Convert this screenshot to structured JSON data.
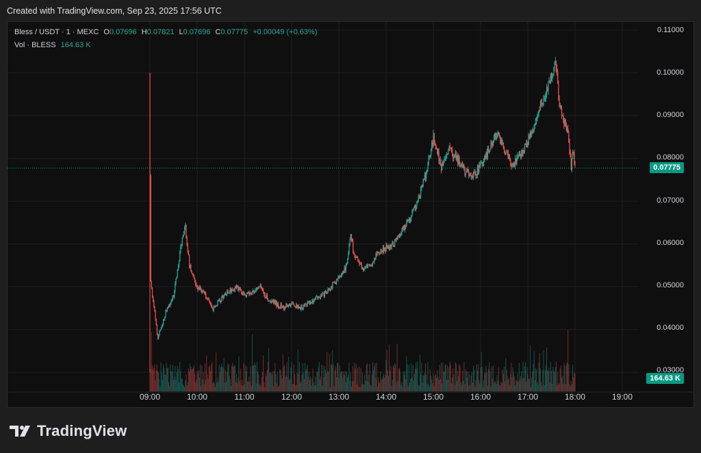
{
  "header": {
    "created_text": "Created with TradingView.com, Sep 23, 2025 17:56 UTC"
  },
  "legend": {
    "symbol": "Bless / USDT · 1 · MEXC",
    "o_label": "O",
    "o_value": "0.07696",
    "h_label": "H",
    "h_value": "0.07821",
    "l_label": "L",
    "l_value": "0.07696",
    "c_label": "C",
    "c_value": "0.07775",
    "change": "+0.00049 (+0.63%)",
    "vol_label": "Vol · BLESS",
    "vol_value": "164.63 K"
  },
  "brand": {
    "name": "TradingView",
    "logo_icon": "tradingview-logo-icon"
  },
  "colors": {
    "up": "#26a69a",
    "down": "#ef5350",
    "last_price": "#089981"
  },
  "chart_data": {
    "type": "candlestick",
    "symbol": "Bless / USDT",
    "interval": "1",
    "exchange": "MEXC",
    "y_ticks": [
      "0.11000",
      "0.10000",
      "0.09000",
      "0.08000",
      "0.07000",
      "0.06000",
      "0.05000",
      "0.04000",
      "0.03000"
    ],
    "x_ticks": [
      "09:00",
      "10:00",
      "11:00",
      "12:00",
      "13:00",
      "14:00",
      "15:00",
      "16:00",
      "17:00",
      "18:00",
      "19:00"
    ],
    "ylim": [
      0.0265,
      0.1135
    ],
    "last_price": 0.07775,
    "last_price_label": "0.07775",
    "volume_label": "164.63 K",
    "price_path": [
      [
        "09:00",
        0.1
      ],
      [
        "09:01",
        0.051
      ],
      [
        "09:10",
        0.038
      ],
      [
        "09:20",
        0.044
      ],
      [
        "09:30",
        0.048
      ],
      [
        "09:40",
        0.06
      ],
      [
        "09:45",
        0.064
      ],
      [
        "09:50",
        0.055
      ],
      [
        "10:00",
        0.05
      ],
      [
        "10:10",
        0.048
      ],
      [
        "10:20",
        0.045
      ],
      [
        "10:30",
        0.047
      ],
      [
        "10:40",
        0.049
      ],
      [
        "10:50",
        0.05
      ],
      [
        "11:00",
        0.048
      ],
      [
        "11:10",
        0.049
      ],
      [
        "11:20",
        0.05
      ],
      [
        "11:30",
        0.047
      ],
      [
        "11:40",
        0.046
      ],
      [
        "11:50",
        0.045
      ],
      [
        "12:00",
        0.046
      ],
      [
        "12:10",
        0.045
      ],
      [
        "12:20",
        0.046
      ],
      [
        "12:30",
        0.047
      ],
      [
        "12:40",
        0.048
      ],
      [
        "12:50",
        0.05
      ],
      [
        "13:00",
        0.052
      ],
      [
        "13:10",
        0.055
      ],
      [
        "13:15",
        0.062
      ],
      [
        "13:20",
        0.057
      ],
      [
        "13:30",
        0.054
      ],
      [
        "13:40",
        0.055
      ],
      [
        "13:50",
        0.058
      ],
      [
        "14:00",
        0.059
      ],
      [
        "14:10",
        0.06
      ],
      [
        "14:20",
        0.063
      ],
      [
        "14:30",
        0.066
      ],
      [
        "14:40",
        0.07
      ],
      [
        "14:50",
        0.076
      ],
      [
        "15:00",
        0.085
      ],
      [
        "15:10",
        0.078
      ],
      [
        "15:20",
        0.082
      ],
      [
        "15:30",
        0.08
      ],
      [
        "15:40",
        0.077
      ],
      [
        "15:50",
        0.076
      ],
      [
        "16:00",
        0.078
      ],
      [
        "16:10",
        0.082
      ],
      [
        "16:20",
        0.086
      ],
      [
        "16:30",
        0.082
      ],
      [
        "16:40",
        0.078
      ],
      [
        "16:50",
        0.081
      ],
      [
        "17:00",
        0.084
      ],
      [
        "17:10",
        0.089
      ],
      [
        "17:20",
        0.094
      ],
      [
        "17:30",
        0.099
      ],
      [
        "17:35",
        0.103
      ],
      [
        "17:40",
        0.093
      ],
      [
        "17:45",
        0.089
      ],
      [
        "17:50",
        0.087
      ],
      [
        "17:55",
        0.078
      ],
      [
        "17:57",
        0.082
      ],
      [
        "18:00",
        0.0775
      ]
    ]
  }
}
